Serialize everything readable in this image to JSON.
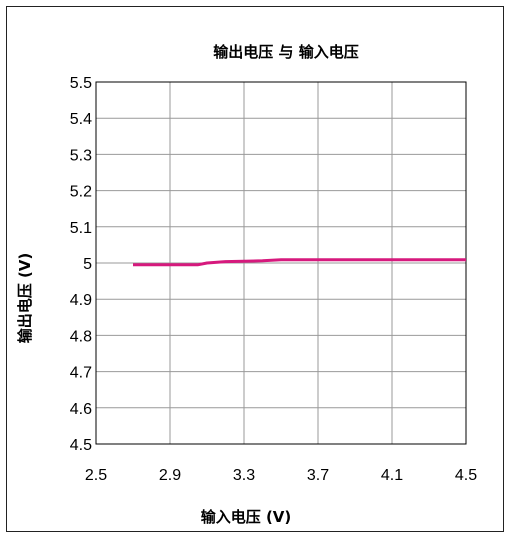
{
  "chart_data": {
    "type": "line",
    "title": "输出电压 与 输入电压",
    "xlabel": "输入电压 (V)",
    "ylabel": "输出电压 (V)",
    "xlim": [
      2.5,
      4.5
    ],
    "ylim": [
      4.5,
      5.5
    ],
    "x_ticks": [
      "2.5",
      "2.9",
      "3.3",
      "3.7",
      "4.1",
      "4.5"
    ],
    "y_ticks": [
      "5.5",
      "5.4",
      "5.3",
      "5.2",
      "5.1",
      "5",
      "4.9",
      "4.8",
      "4.7",
      "4.6",
      "4.5"
    ],
    "grid": true,
    "line_color": "#d6197d",
    "series": [
      {
        "x": [
          2.7,
          2.9,
          3.05,
          3.1,
          3.2,
          3.3,
          3.4,
          3.5,
          3.7,
          4.1,
          4.5
        ],
        "values": [
          4.995,
          4.995,
          4.995,
          5.0,
          5.004,
          5.005,
          5.006,
          5.009,
          5.009,
          5.009,
          5.009
        ]
      }
    ]
  }
}
